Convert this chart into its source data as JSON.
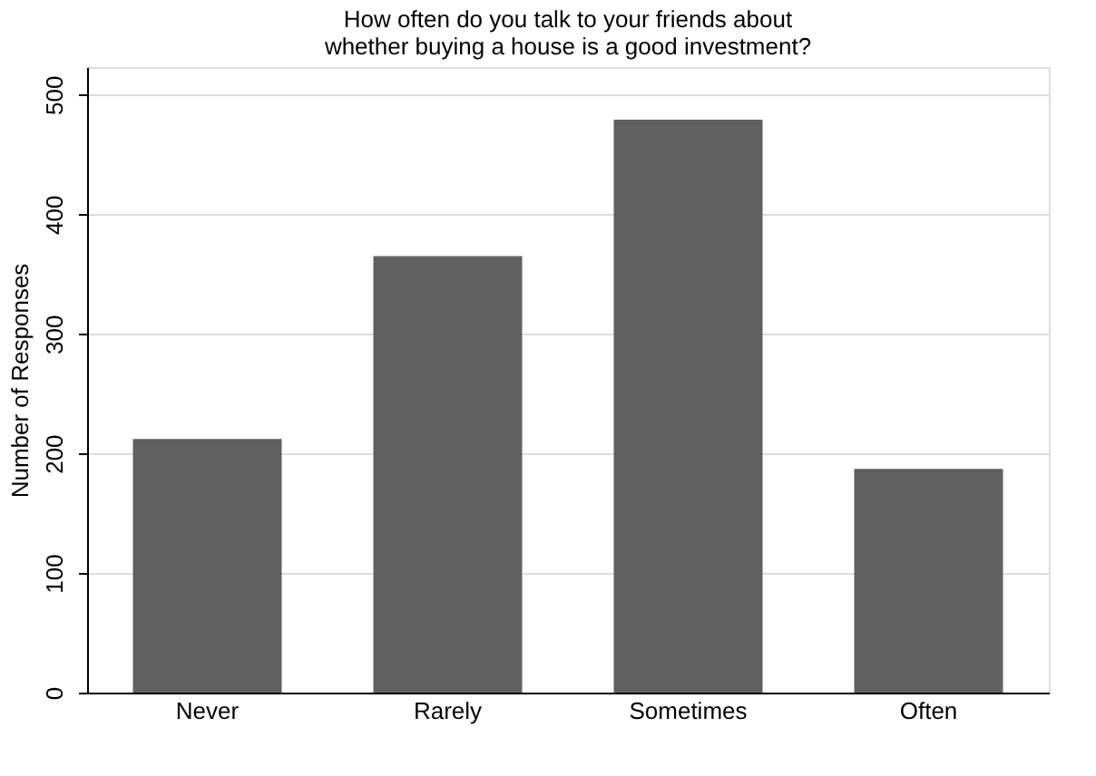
{
  "chart_data": {
    "type": "bar",
    "title": [
      "How often do you talk to your friends about",
      "whether buying a house is a good investment?"
    ],
    "ylabel": "Number of Responses",
    "categories": [
      "Never",
      "Rarely",
      "Sometimes",
      "Often"
    ],
    "values": [
      212,
      365,
      479,
      187
    ],
    "color": "#606060",
    "ylim": [
      0,
      523
    ],
    "yticks": [
      0,
      100,
      200,
      300,
      400,
      500
    ],
    "grid": "y"
  }
}
